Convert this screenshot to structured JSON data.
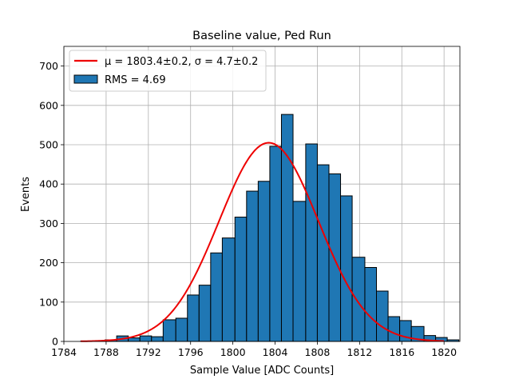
{
  "chart_data": {
    "type": "bar",
    "title": "Baseline value, Ped Run",
    "xlabel": "Sample Value [ADC Counts]",
    "ylabel": "Events",
    "xlim": [
      1784,
      1821.5
    ],
    "ylim": [
      0,
      750
    ],
    "xticks": [
      1784,
      1788,
      1792,
      1796,
      1800,
      1804,
      1808,
      1812,
      1816,
      1820
    ],
    "yticks": [
      0,
      100,
      200,
      300,
      400,
      500,
      600,
      700
    ],
    "grid": true,
    "legend_position": "upper-left",
    "legend": {
      "fit_label": "μ = 1803.4±0.2, σ = 4.7±0.2",
      "hist_label": "RMS = 4.69"
    },
    "histogram": {
      "name": "RMS = 4.69",
      "color": "#1f77b4",
      "edgecolor": "#000000",
      "bins": [
        {
          "x0": 1785.6,
          "x1": 1786.7,
          "count": 1
        },
        {
          "x0": 1786.7,
          "x1": 1787.9,
          "count": 1
        },
        {
          "x0": 1787.9,
          "x1": 1789.0,
          "count": 4
        },
        {
          "x0": 1789.0,
          "x1": 1790.1,
          "count": 14
        },
        {
          "x0": 1790.1,
          "x1": 1791.2,
          "count": 9
        },
        {
          "x0": 1791.2,
          "x1": 1792.3,
          "count": 14
        },
        {
          "x0": 1792.3,
          "x1": 1793.4,
          "count": 12
        },
        {
          "x0": 1793.4,
          "x1": 1794.6,
          "count": 55
        },
        {
          "x0": 1794.6,
          "x1": 1795.7,
          "count": 59
        },
        {
          "x0": 1795.7,
          "x1": 1796.8,
          "count": 118
        },
        {
          "x0": 1796.8,
          "x1": 1797.9,
          "count": 143
        },
        {
          "x0": 1797.9,
          "x1": 1799.0,
          "count": 225
        },
        {
          "x0": 1799.0,
          "x1": 1800.2,
          "count": 263
        },
        {
          "x0": 1800.2,
          "x1": 1801.3,
          "count": 316
        },
        {
          "x0": 1801.3,
          "x1": 1802.4,
          "count": 382
        },
        {
          "x0": 1802.4,
          "x1": 1803.5,
          "count": 407
        },
        {
          "x0": 1803.5,
          "x1": 1804.6,
          "count": 496
        },
        {
          "x0": 1804.6,
          "x1": 1805.7,
          "count": 577
        },
        {
          "x0": 1805.7,
          "x1": 1806.9,
          "count": 356
        },
        {
          "x0": 1806.9,
          "x1": 1808.0,
          "count": 502
        },
        {
          "x0": 1808.0,
          "x1": 1809.1,
          "count": 449
        },
        {
          "x0": 1809.1,
          "x1": 1810.2,
          "count": 426
        },
        {
          "x0": 1810.2,
          "x1": 1811.3,
          "count": 370
        },
        {
          "x0": 1811.3,
          "x1": 1812.5,
          "count": 214
        },
        {
          "x0": 1812.5,
          "x1": 1813.6,
          "count": 188
        },
        {
          "x0": 1813.6,
          "x1": 1814.7,
          "count": 128
        },
        {
          "x0": 1814.7,
          "x1": 1815.8,
          "count": 63
        },
        {
          "x0": 1815.8,
          "x1": 1816.9,
          "count": 53
        },
        {
          "x0": 1816.9,
          "x1": 1818.1,
          "count": 38
        },
        {
          "x0": 1818.1,
          "x1": 1819.2,
          "count": 15
        },
        {
          "x0": 1819.2,
          "x1": 1820.3,
          "count": 10
        },
        {
          "x0": 1820.3,
          "x1": 1821.4,
          "count": 4
        }
      ]
    },
    "fit": {
      "name": "μ = 1803.4±0.2, σ = 4.7±0.2",
      "type": "gaussian",
      "mu": 1803.4,
      "sigma": 4.7,
      "amplitude": 505,
      "x_range": [
        1785.6,
        1820.0
      ],
      "color": "#ee0000"
    }
  }
}
